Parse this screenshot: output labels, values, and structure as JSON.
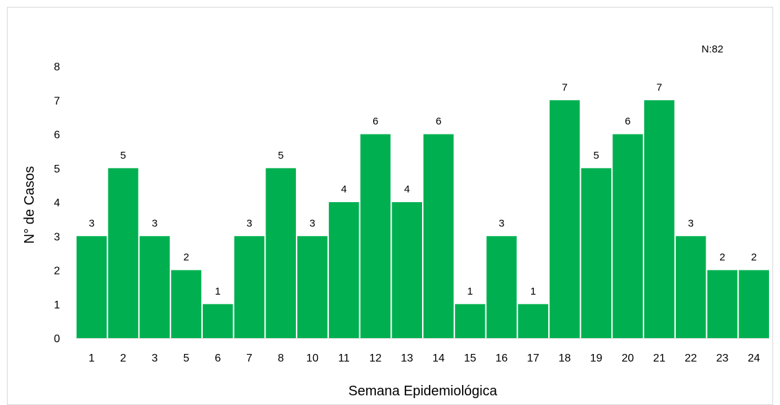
{
  "chart_data": {
    "type": "bar",
    "categories": [
      "1",
      "2",
      "3",
      "5",
      "6",
      "7",
      "8",
      "10",
      "11",
      "12",
      "13",
      "14",
      "15",
      "16",
      "17",
      "18",
      "19",
      "20",
      "21",
      "22",
      "23",
      "24"
    ],
    "values": [
      3,
      5,
      3,
      2,
      1,
      3,
      5,
      3,
      4,
      6,
      4,
      6,
      1,
      3,
      1,
      7,
      5,
      6,
      7,
      3,
      2,
      2
    ],
    "title": "",
    "xlabel": "Semana Epidemiológica",
    "ylabel": "N° de Casos",
    "ylim": [
      0,
      8
    ],
    "yticks": [
      0,
      1,
      2,
      3,
      4,
      5,
      6,
      7,
      8
    ],
    "annotation": "N:82",
    "data_labels": true,
    "grid": false,
    "legend": "none",
    "bar_color": "#00B050"
  }
}
